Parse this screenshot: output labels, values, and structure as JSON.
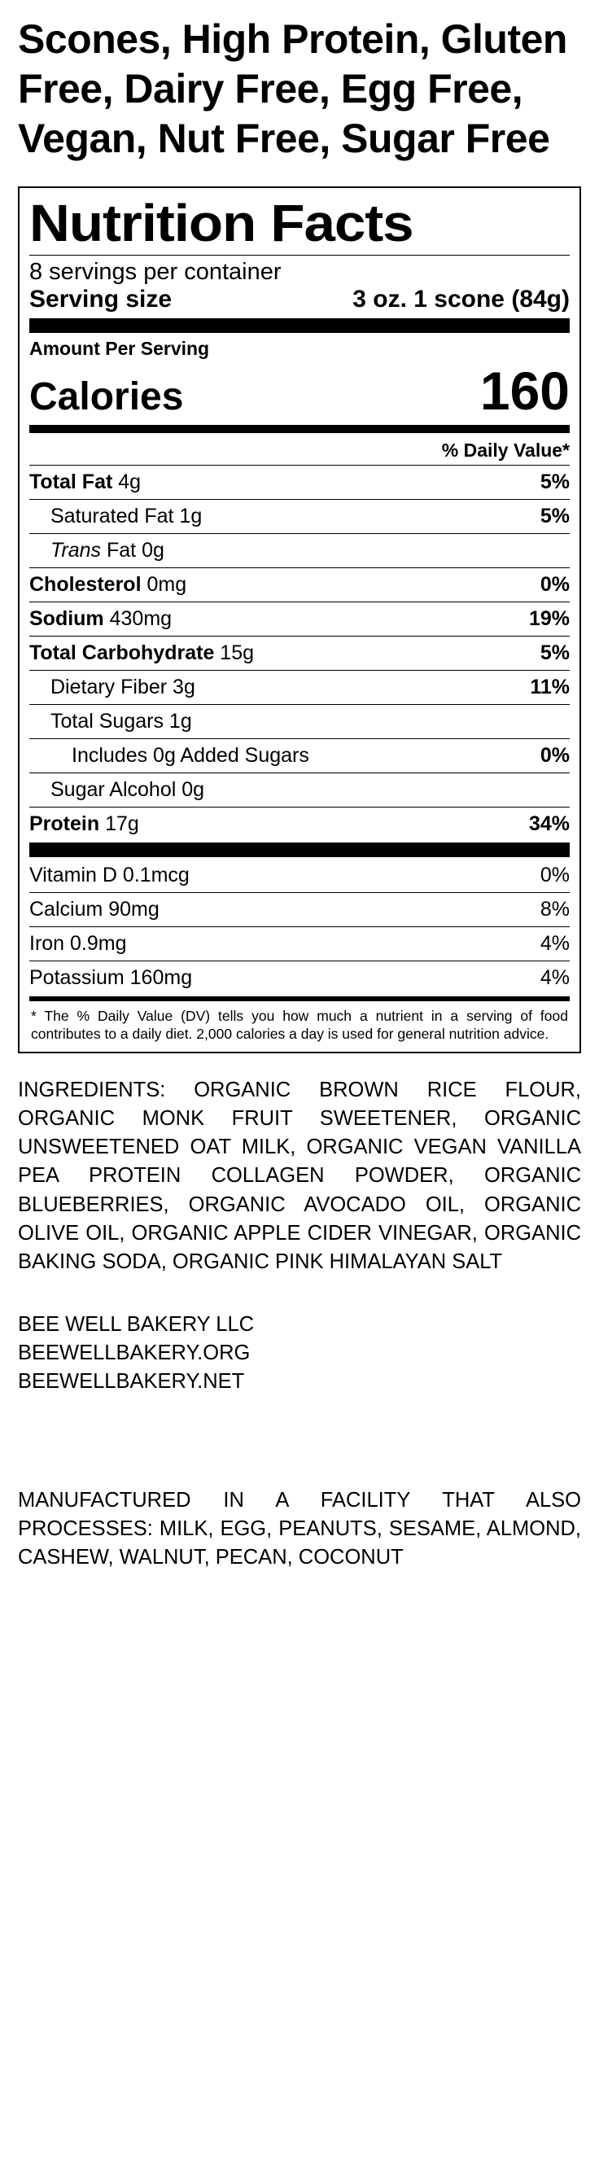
{
  "title": "Scones, High Protein, Gluten Free, Dairy Free, Egg Free, Vegan, Nut Free, Sugar Free",
  "panel": {
    "heading": "Nutrition Facts",
    "servings_per_container": "8 servings per container",
    "serving_size_label": "Serving size",
    "serving_size_value": "3 oz. 1 scone (84g)",
    "amount_per_serving": "Amount Per Serving",
    "calories_label": "Calories",
    "calories_value": "160",
    "dv_header": "% Daily Value*",
    "nutrients": [
      {
        "label_bold": "Total Fat",
        "label_rest": " 4g",
        "pct": "5%",
        "indent": 0
      },
      {
        "label_bold": "",
        "label_rest": "Saturated Fat 1g",
        "pct": "5%",
        "indent": 1
      },
      {
        "label_bold": "",
        "label_rest": " Fat 0g",
        "prefix_italic": "Trans",
        "pct": "",
        "indent": 1
      },
      {
        "label_bold": "Cholesterol",
        "label_rest": " 0mg",
        "pct": "0%",
        "indent": 0
      },
      {
        "label_bold": "Sodium",
        "label_rest": " 430mg",
        "pct": "19%",
        "indent": 0
      },
      {
        "label_bold": "Total Carbohydrate",
        "label_rest": " 15g",
        "pct": "5%",
        "indent": 0
      },
      {
        "label_bold": "",
        "label_rest": "Dietary Fiber 3g",
        "pct": "11%",
        "indent": 1
      },
      {
        "label_bold": "",
        "label_rest": "Total Sugars 1g",
        "pct": "",
        "indent": 1
      },
      {
        "label_bold": "",
        "label_rest": "Includes 0g Added Sugars",
        "pct": "0%",
        "indent": 2
      },
      {
        "label_bold": "",
        "label_rest": "Sugar Alcohol 0g",
        "pct": "",
        "indent": 1
      },
      {
        "label_bold": "Protein",
        "label_rest": " 17g",
        "pct": "34%",
        "indent": 0
      }
    ],
    "vitamins": [
      {
        "label": "Vitamin D 0.1mcg",
        "pct": "0%"
      },
      {
        "label": "Calcium 90mg",
        "pct": "8%"
      },
      {
        "label": "Iron 0.9mg",
        "pct": "4%"
      },
      {
        "label": "Potassium 160mg",
        "pct": "4%"
      }
    ],
    "footnote": "* The % Daily Value (DV) tells you how much a nutrient in a serving of food contributes to a daily diet. 2,000 calories a day is used for general nutrition advice."
  },
  "ingredients": "INGREDIENTS: ORGANIC BROWN RICE FLOUR, ORGANIC MONK FRUIT SWEETENER, ORGANIC UNSWEETENED OAT MILK, ORGANIC VEGAN VANILLA PEA PROTEIN COLLAGEN POWDER, ORGANIC BLUEBERRIES, ORGANIC AVOCADO OIL, ORGANIC OLIVE OIL, ORGANIC APPLE CIDER VINEGAR, ORGANIC BAKING SODA, ORGANIC PINK HIMALAYAN SALT",
  "company": {
    "name": "BEE WELL BAKERY LLC",
    "site1": "BEEWELLBAKERY.ORG",
    "site2": "BEEWELLBAKERY.NET"
  },
  "warning": "MANUFACTURED IN A FACILITY THAT ALSO PROCESSES: MILK, EGG, PEANUTS, SESAME, ALMOND, CASHEW, WALNUT, PECAN, COCONUT",
  "colors": {
    "text": "#000000",
    "bg": "#ffffff"
  }
}
